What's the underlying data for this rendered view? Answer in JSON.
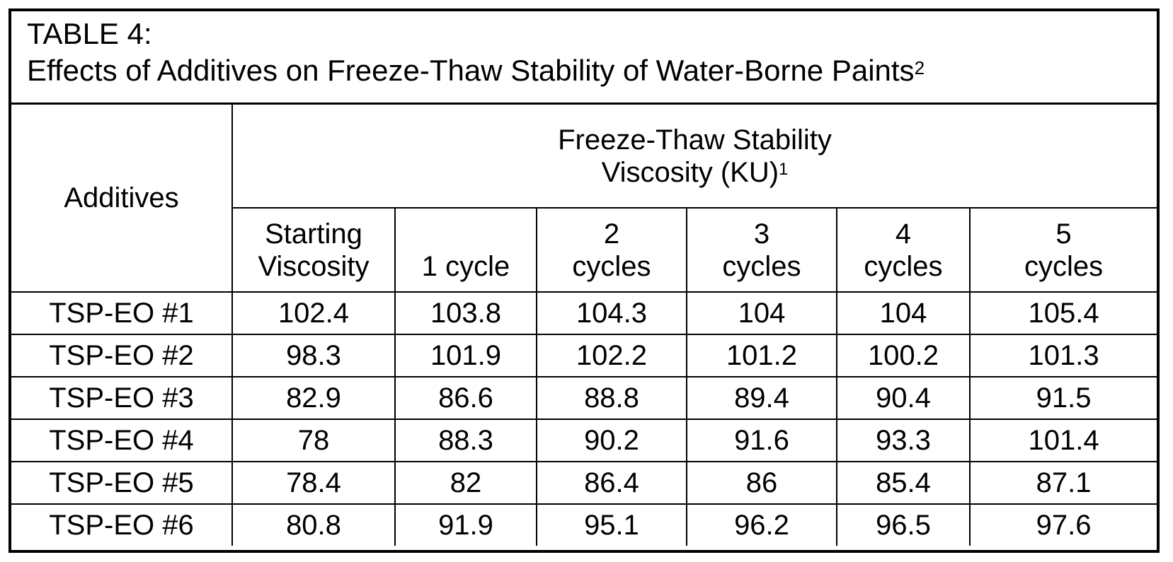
{
  "table": {
    "title_line1": "TABLE 4:",
    "title_line2": "Effects of  Additives on Freeze-Thaw Stability of Water-Borne Paints",
    "title_sup": "2",
    "group_header_line1": "Freeze-Thaw Stability",
    "group_header_line2": "Viscosity (KU)",
    "group_header_sup": "1",
    "additives_header": "Additives",
    "columns": [
      {
        "line1": "Starting",
        "line2": "Viscosity"
      },
      {
        "line1": "",
        "line2": "1 cycle"
      },
      {
        "line1": "2",
        "line2": "cycles"
      },
      {
        "line1": "3",
        "line2": "cycles"
      },
      {
        "line1": "4",
        "line2": "cycles"
      },
      {
        "line1": "5",
        "line2": "cycles"
      }
    ],
    "rows": [
      {
        "additive": "TSP-EO #1",
        "values": [
          "102.4",
          "103.8",
          "104.3",
          "104",
          "104",
          "105.4"
        ]
      },
      {
        "additive": "TSP-EO #2",
        "values": [
          "98.3",
          "101.9",
          "102.2",
          "101.2",
          "100.2",
          "101.3"
        ]
      },
      {
        "additive": "TSP-EO #3",
        "values": [
          "82.9",
          "86.6",
          "88.8",
          "89.4",
          "90.4",
          "91.5"
        ]
      },
      {
        "additive": "TSP-EO #4",
        "values": [
          "78",
          "88.3",
          "90.2",
          "91.6",
          "93.3",
          "101.4"
        ]
      },
      {
        "additive": "TSP-EO #5",
        "values": [
          "78.4",
          "82",
          "86.4",
          "86",
          "85.4",
          "87.1"
        ]
      },
      {
        "additive": "TSP-EO #6",
        "values": [
          "80.8",
          "91.9",
          "95.1",
          "96.2",
          "96.5",
          "97.6"
        ]
      }
    ]
  }
}
